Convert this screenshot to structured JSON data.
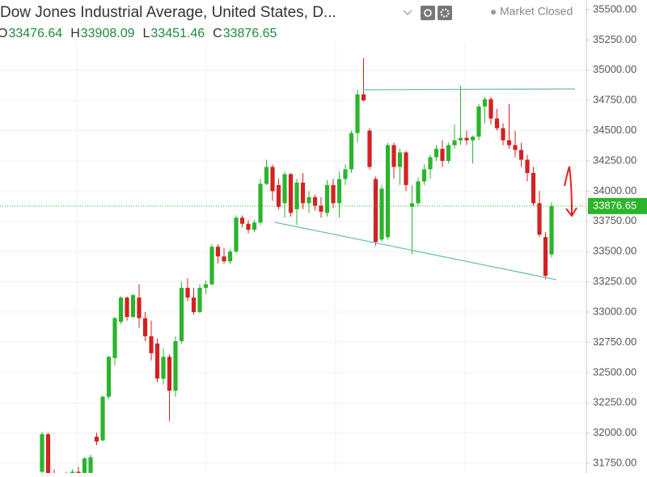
{
  "header": {
    "title": "Dow Jones Industrial Average, United States, D...",
    "status": "Market Closed",
    "ohlc": [
      {
        "label": "O",
        "value": 33476.64
      },
      {
        "label": "H",
        "value": 33908.09
      },
      {
        "label": "L",
        "value": 33451.46
      },
      {
        "label": "C",
        "value": 33876.65
      }
    ]
  },
  "chart_data": {
    "type": "candlestick",
    "up_color": "#2cb42c",
    "down_color": "#d42121",
    "ylim": [
      31670,
      35580
    ],
    "yticks": [
      {
        "value": 31750,
        "label": "31750.00"
      },
      {
        "value": 32000,
        "label": "32000.00"
      },
      {
        "value": 32250,
        "label": "32250.00"
      },
      {
        "value": 32500,
        "label": "32500.00"
      },
      {
        "value": 32750,
        "label": "32750.00"
      },
      {
        "value": 33000,
        "label": "33000.00"
      },
      {
        "value": 33250,
        "label": "33250.00"
      },
      {
        "value": 33500,
        "label": "33500.00"
      },
      {
        "value": 33750,
        "label": "33750.00"
      },
      {
        "value": 34000,
        "label": "34000.00"
      },
      {
        "value": 34250,
        "label": "34250.00"
      },
      {
        "value": 34500,
        "label": "34500.00"
      },
      {
        "value": 34750,
        "label": "34750.00"
      },
      {
        "value": 35000,
        "label": "35000.00"
      },
      {
        "value": 35250,
        "label": "35250.00"
      },
      {
        "value": 35500,
        "label": "35500.00"
      }
    ],
    "grid": true,
    "open": [
      31680,
      31990,
      31620,
      31580,
      31600,
      31560,
      31680,
      31640,
      31650,
      31970,
      31940,
      32300,
      32620,
      32920,
      33120,
      32960,
      33120,
      32950,
      32800,
      32740,
      32450,
      32630,
      32350,
      32760,
      33200,
      33120,
      33000,
      33200,
      33230,
      33540,
      33460,
      33420,
      33500,
      33780,
      33730,
      33680,
      33740,
      34060,
      34200,
      34050,
      33900,
      34140,
      33850,
      34070,
      33900,
      33950,
      33880,
      33820,
      34050,
      33900,
      34100,
      34180,
      34480,
      34800,
      34500,
      34100,
      33600,
      33620,
      34380,
      34200,
      34320,
      33870,
      33900,
      34080,
      34180,
      34280,
      34350,
      34250,
      34380,
      34420,
      34440,
      34420,
      34450,
      34700,
      34760,
      34600,
      34520,
      34420,
      34380,
      34340,
      34260,
      34150,
      33900,
      33620,
      33476.64
    ],
    "high": [
      32010,
      32000,
      31700,
      31640,
      31680,
      31700,
      31720,
      31800,
      31820,
      32000,
      32310,
      32640,
      32960,
      33130,
      33130,
      33150,
      33230,
      33000,
      32930,
      32780,
      32700,
      32650,
      32800,
      33250,
      33280,
      33200,
      33230,
      33260,
      33560,
      33560,
      33530,
      33520,
      33800,
      33800,
      33760,
      33760,
      34100,
      34260,
      34220,
      34100,
      34160,
      34150,
      34100,
      34150,
      34000,
      33970,
      33950,
      34090,
      34100,
      34160,
      34220,
      34500,
      34840,
      35100,
      34520,
      34120,
      34050,
      34400,
      34400,
      34350,
      34330,
      34050,
      34110,
      34220,
      34300,
      34380,
      34420,
      34400,
      34550,
      34870,
      34500,
      34460,
      34720,
      34780,
      34780,
      34680,
      34560,
      34720,
      34500,
      34400,
      34300,
      34200,
      34000,
      33660,
      33908.09
    ],
    "low": [
      31600,
      31600,
      31550,
      31500,
      31540,
      31520,
      31600,
      31600,
      31640,
      31900,
      31930,
      32280,
      32560,
      32900,
      32930,
      32950,
      32870,
      32760,
      32600,
      32420,
      32400,
      32100,
      32300,
      32740,
      33090,
      32980,
      32990,
      33150,
      33220,
      33400,
      33400,
      33400,
      33490,
      33700,
      33650,
      33660,
      33720,
      34050,
      33920,
      33850,
      33780,
      33790,
      33720,
      33850,
      33820,
      33840,
      33780,
      33790,
      33860,
      33780,
      34050,
      34150,
      34400,
      34740,
      34180,
      33550,
      33580,
      33600,
      34100,
      34050,
      34000,
      33480,
      33880,
      34050,
      34100,
      34250,
      34200,
      34230,
      34350,
      34380,
      34380,
      34230,
      34420,
      34560,
      34550,
      34500,
      34380,
      34350,
      34280,
      34200,
      34080,
      33880,
      33620,
      33270,
      33451.46
    ],
    "close": [
      31990,
      31620,
      31580,
      31600,
      31560,
      31680,
      31640,
      31790,
      31800,
      31930,
      32300,
      32630,
      32950,
      33120,
      32960,
      33140,
      32950,
      32800,
      32660,
      32450,
      32630,
      32350,
      32760,
      33200,
      33120,
      33000,
      33200,
      33230,
      33540,
      33460,
      33420,
      33500,
      33780,
      33730,
      33680,
      33740,
      34060,
      34200,
      34000,
      33870,
      34140,
      33820,
      34070,
      33900,
      33950,
      33880,
      33830,
      34050,
      33900,
      34100,
      34180,
      34480,
      34800,
      34750,
      34200,
      33580,
      34020,
      34380,
      34200,
      34320,
      34050,
      33900,
      34080,
      34180,
      34280,
      34350,
      34250,
      34380,
      34420,
      34440,
      34420,
      34450,
      34700,
      34760,
      34600,
      34520,
      34420,
      34380,
      34340,
      34260,
      34150,
      33900,
      33640,
      33300,
      33876.65
    ]
  }
}
